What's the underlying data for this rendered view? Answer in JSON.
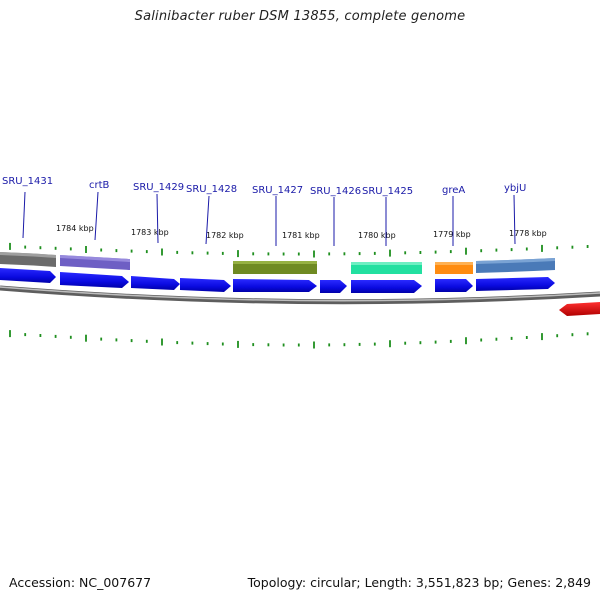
{
  "title": "Salinibacter ruber DSM 13855, complete genome",
  "footer": {
    "accession": "Accession: NC_007677",
    "summary": "Topology: circular; Length: 3,551,823 bp; Genes: 2,849"
  },
  "colors": {
    "cds": "#0a0ae0",
    "axis": "#8c8c8c",
    "tick": "#1f8f1f",
    "label": "#1a1aa8",
    "red_feature": "#e00000"
  },
  "kbp_labels": [
    "1784 kbp",
    "1783 kbp",
    "1782 kbp",
    "1781 kbp",
    "1780 kbp",
    "1779 kbp",
    "1778 kbp"
  ],
  "gene_labels": [
    "SRU_1431",
    "crtB",
    "SRU_1429",
    "SRU_1428",
    "SRU_1427",
    "SRU_1426",
    "SRU_1425",
    "greA",
    "ybjU"
  ],
  "genes": [
    {
      "color": "#6b6b6b"
    },
    {
      "color": "#6e5fc4"
    },
    {
      "color": "#6f8a22"
    },
    {
      "color": "#22e0a0"
    },
    {
      "color": "#ff8c10"
    },
    {
      "color": "#4a7ab8"
    }
  ]
}
